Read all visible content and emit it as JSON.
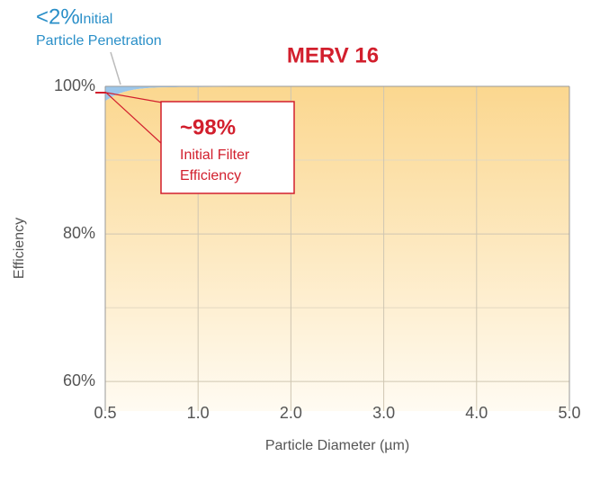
{
  "chart_data": {
    "type": "area",
    "title": "MERV 16",
    "x_label": "Particle Diameter (µm)",
    "y_label": "Efficiency",
    "categories": [
      "0.5",
      "1.0",
      "2.0",
      "3.0",
      "4.0",
      "5.0"
    ],
    "series": [
      {
        "name": "Efficiency",
        "color": "#fbd78f",
        "values": [
          98,
          99.9,
          100,
          100,
          100,
          100
        ]
      }
    ],
    "penetration_color": "#9cc6ea",
    "ylim": [
      56,
      100
    ],
    "yticks": [
      {
        "value": 60,
        "label": "60%"
      },
      {
        "value": 80,
        "label": "80%"
      },
      {
        "value": 100,
        "label": "100%"
      }
    ],
    "yminor": [
      70,
      90
    ],
    "grid": true,
    "annotations": {
      "penetration_value": "<2%",
      "penetration_word": "Initial",
      "penetration_text": "Particle Penetration",
      "efficiency_value": "~98%",
      "efficiency_line1": "Initial Filter",
      "efficiency_line2": "Efficiency"
    }
  }
}
